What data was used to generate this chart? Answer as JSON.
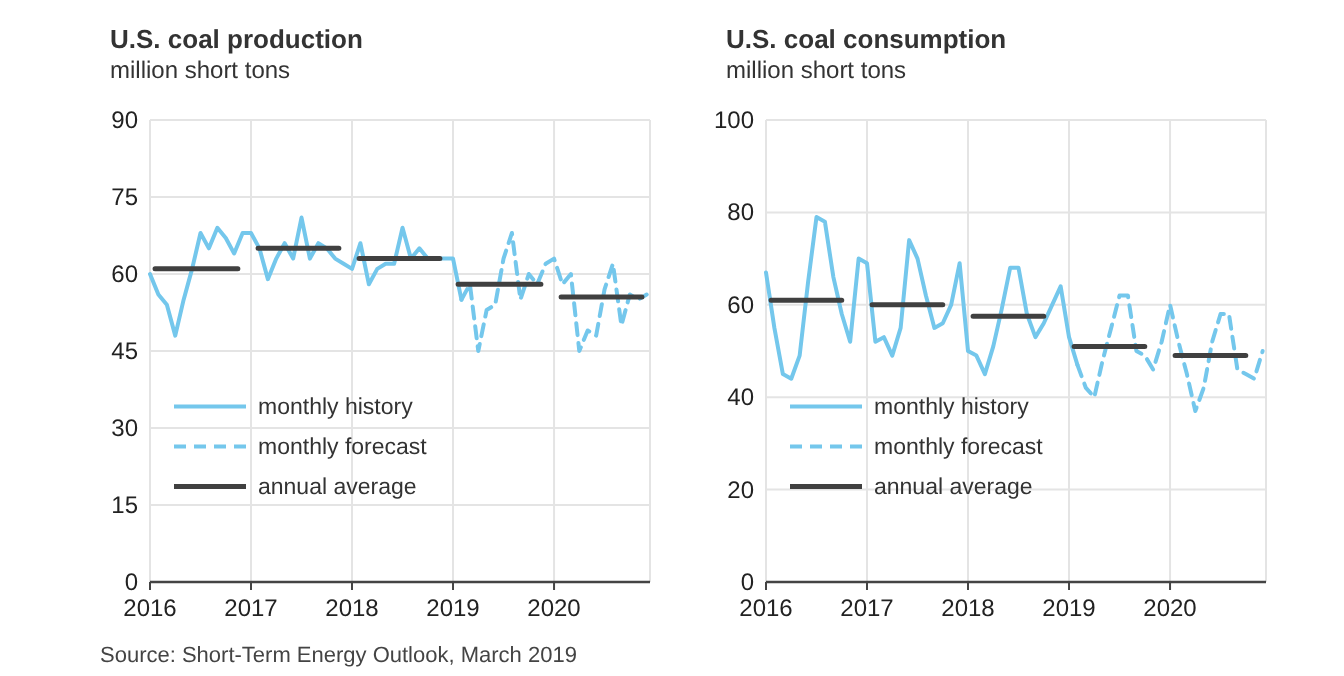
{
  "chart_data": [
    {
      "type": "line",
      "title": "U.S. coal production",
      "subtitle": "million short tons",
      "xlim": [
        2016,
        2020.95
      ],
      "xticks": [
        2016,
        2017,
        2018,
        2019,
        2020
      ],
      "ylim": [
        0,
        90
      ],
      "yticks": [
        0,
        15,
        30,
        45,
        60,
        75,
        90
      ],
      "grid": true,
      "legend": "left",
      "annotations": [
        "Source: Short-Term Energy Outlook, March 2019"
      ],
      "series": [
        {
          "name": "monthly history",
          "color": "#74c7ec",
          "line_style": "solid",
          "x": [
            2016,
            2016.083,
            2016.167,
            2016.25,
            2016.333,
            2016.417,
            2016.5,
            2016.583,
            2016.667,
            2016.75,
            2016.833,
            2016.917,
            2017,
            2017.083,
            2017.167,
            2017.25,
            2017.333,
            2017.417,
            2017.5,
            2017.583,
            2017.667,
            2017.75,
            2017.833,
            2017.917,
            2018,
            2018.083,
            2018.167,
            2018.25,
            2018.333,
            2018.417,
            2018.5,
            2018.583,
            2018.667,
            2018.75,
            2018.833,
            2018.917,
            2019,
            2019.083
          ],
          "values": [
            60,
            56,
            54,
            48,
            55,
            61,
            68,
            65,
            69,
            67,
            64,
            68,
            68,
            65,
            59,
            63,
            66,
            63,
            71,
            63,
            66,
            65,
            63,
            62,
            61,
            66,
            58,
            61,
            62,
            62,
            69,
            63,
            65,
            63,
            63,
            63,
            63,
            55
          ]
        },
        {
          "name": "monthly forecast",
          "color": "#74c7ec",
          "line_style": "dashed",
          "x": [
            2019.083,
            2019.167,
            2019.25,
            2019.333,
            2019.417,
            2019.5,
            2019.583,
            2019.667,
            2019.75,
            2019.833,
            2019.917,
            2020,
            2020.083,
            2020.167,
            2020.25,
            2020.333,
            2020.417,
            2020.5,
            2020.583,
            2020.667,
            2020.75,
            2020.833,
            2020.917
          ],
          "values": [
            55,
            58,
            45,
            53,
            54,
            63,
            68,
            55,
            60,
            58,
            62,
            63,
            58,
            60,
            45,
            49,
            48,
            57,
            62,
            50,
            56,
            55,
            56
          ]
        },
        {
          "name": "annual average",
          "color": "#404040",
          "line_style": "solid",
          "x": [
            2016.05,
            2016.87,
            2016.95,
            2017.07,
            2017.87,
            2017.95,
            2018.07,
            2018.87,
            2018.95,
            2019.05,
            2019.87,
            2019.95,
            2020.07,
            2020.87
          ],
          "values": [
            61,
            61,
            null,
            65,
            65,
            null,
            63,
            63,
            null,
            58,
            58,
            null,
            55.5,
            55.5
          ]
        }
      ]
    },
    {
      "type": "line",
      "title": "U.S. coal consumption",
      "subtitle": "million short tons",
      "xlim": [
        2016,
        2020.95
      ],
      "xticks": [
        2016,
        2017,
        2018,
        2019,
        2020
      ],
      "ylim": [
        0,
        100
      ],
      "yticks": [
        0,
        20,
        40,
        60,
        80,
        100
      ],
      "grid": true,
      "legend": "left",
      "series": [
        {
          "name": "monthly history",
          "color": "#74c7ec",
          "line_style": "solid",
          "x": [
            2016,
            2016.083,
            2016.167,
            2016.25,
            2016.333,
            2016.417,
            2016.5,
            2016.583,
            2016.667,
            2016.75,
            2016.833,
            2016.917,
            2017,
            2017.083,
            2017.167,
            2017.25,
            2017.333,
            2017.417,
            2017.5,
            2017.583,
            2017.667,
            2017.75,
            2017.833,
            2017.917,
            2018,
            2018.083,
            2018.167,
            2018.25,
            2018.333,
            2018.417,
            2018.5,
            2018.583,
            2018.667,
            2018.75,
            2018.833,
            2018.917,
            2019,
            2019.083
          ],
          "values": [
            67,
            55,
            45,
            44,
            49,
            65,
            79,
            78,
            66,
            58,
            52,
            70,
            69,
            52,
            53,
            49,
            55,
            74,
            70,
            62,
            55,
            56,
            60,
            69,
            50,
            49,
            45,
            51,
            59,
            68,
            68,
            58,
            53,
            56,
            60,
            64,
            53,
            47
          ]
        },
        {
          "name": "monthly forecast",
          "color": "#74c7ec",
          "line_style": "dashed",
          "x": [
            2019.083,
            2019.167,
            2019.25,
            2019.333,
            2019.417,
            2019.5,
            2019.583,
            2019.667,
            2019.75,
            2019.833,
            2019.917,
            2020,
            2020.083,
            2020.167,
            2020.25,
            2020.333,
            2020.417,
            2020.5,
            2020.583,
            2020.667,
            2020.75,
            2020.833,
            2020.917
          ],
          "values": [
            47,
            42,
            40,
            48,
            55,
            62,
            62,
            50,
            49,
            46,
            52,
            60,
            52,
            45,
            37,
            42,
            52,
            58,
            58,
            46,
            45,
            44,
            50
          ]
        },
        {
          "name": "annual average",
          "color": "#404040",
          "line_style": "solid",
          "x": [
            2016.05,
            2016.75,
            2016.95,
            2017.05,
            2017.75,
            2017.95,
            2018.05,
            2018.75,
            2018.95,
            2019.05,
            2019.75,
            2019.95,
            2020.05,
            2020.75
          ],
          "values": [
            61,
            61,
            null,
            60,
            60,
            null,
            57.5,
            57.5,
            null,
            51,
            51,
            null,
            49,
            49
          ]
        }
      ]
    }
  ]
}
